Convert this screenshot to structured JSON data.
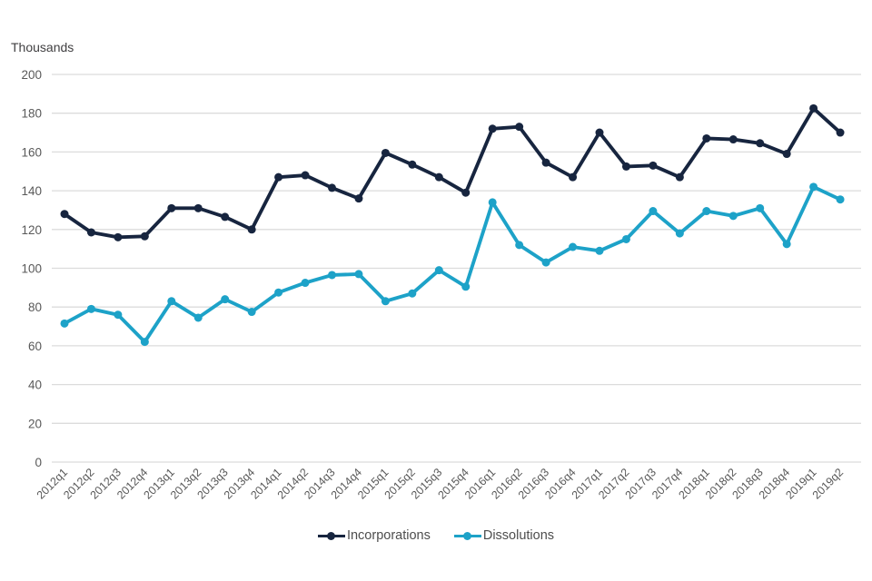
{
  "units_label": "Thousands",
  "chart_data": {
    "type": "line",
    "title": "",
    "xlabel": "",
    "ylabel": "Thousands",
    "ylim": [
      0,
      200
    ],
    "yticks": [
      0,
      20,
      40,
      60,
      80,
      100,
      120,
      140,
      160,
      180,
      200
    ],
    "grid": true,
    "legend_position": "bottom",
    "categories": [
      "2012q1",
      "2012q2",
      "2012q3",
      "2012q4",
      "2013q1",
      "2013q2",
      "2013q3",
      "2013q4",
      "2014q1",
      "2014q2",
      "2014q3",
      "2014q4",
      "2015q1",
      "2015q2",
      "2015q3",
      "2015q4",
      "2016q1",
      "2016q2",
      "2016q3",
      "2016q4",
      "2017q1",
      "2017q2",
      "2017q3",
      "2017q4",
      "2018q1",
      "2018q2",
      "2018q3",
      "2018q4",
      "2019q1",
      "2019q2"
    ],
    "series": [
      {
        "name": "Incorporations",
        "color": "#17253f",
        "values": [
          128,
          118.5,
          116,
          116.5,
          131,
          131,
          126.5,
          120,
          147,
          148,
          141.5,
          136,
          159.5,
          153.5,
          147,
          139,
          172,
          173,
          154.5,
          147,
          170,
          152.5,
          153,
          147,
          167,
          166.5,
          164.5,
          159,
          182.5,
          170
        ]
      },
      {
        "name": "Dissolutions",
        "color": "#1da2c8",
        "values": [
          71.5,
          79,
          76,
          62,
          83,
          74.5,
          84,
          77.5,
          87.5,
          92.5,
          96.5,
          97,
          83,
          87,
          99,
          90.5,
          134,
          112,
          103,
          111,
          109,
          115,
          129.5,
          118,
          129.5,
          127,
          131,
          112.5,
          142,
          135.5
        ]
      }
    ]
  },
  "colors": {
    "gridline": "#dcdcdc",
    "tick_text": "#595959",
    "units_text": "#414042",
    "legend_text": "#4d4d4d",
    "background": "#ffffff"
  }
}
